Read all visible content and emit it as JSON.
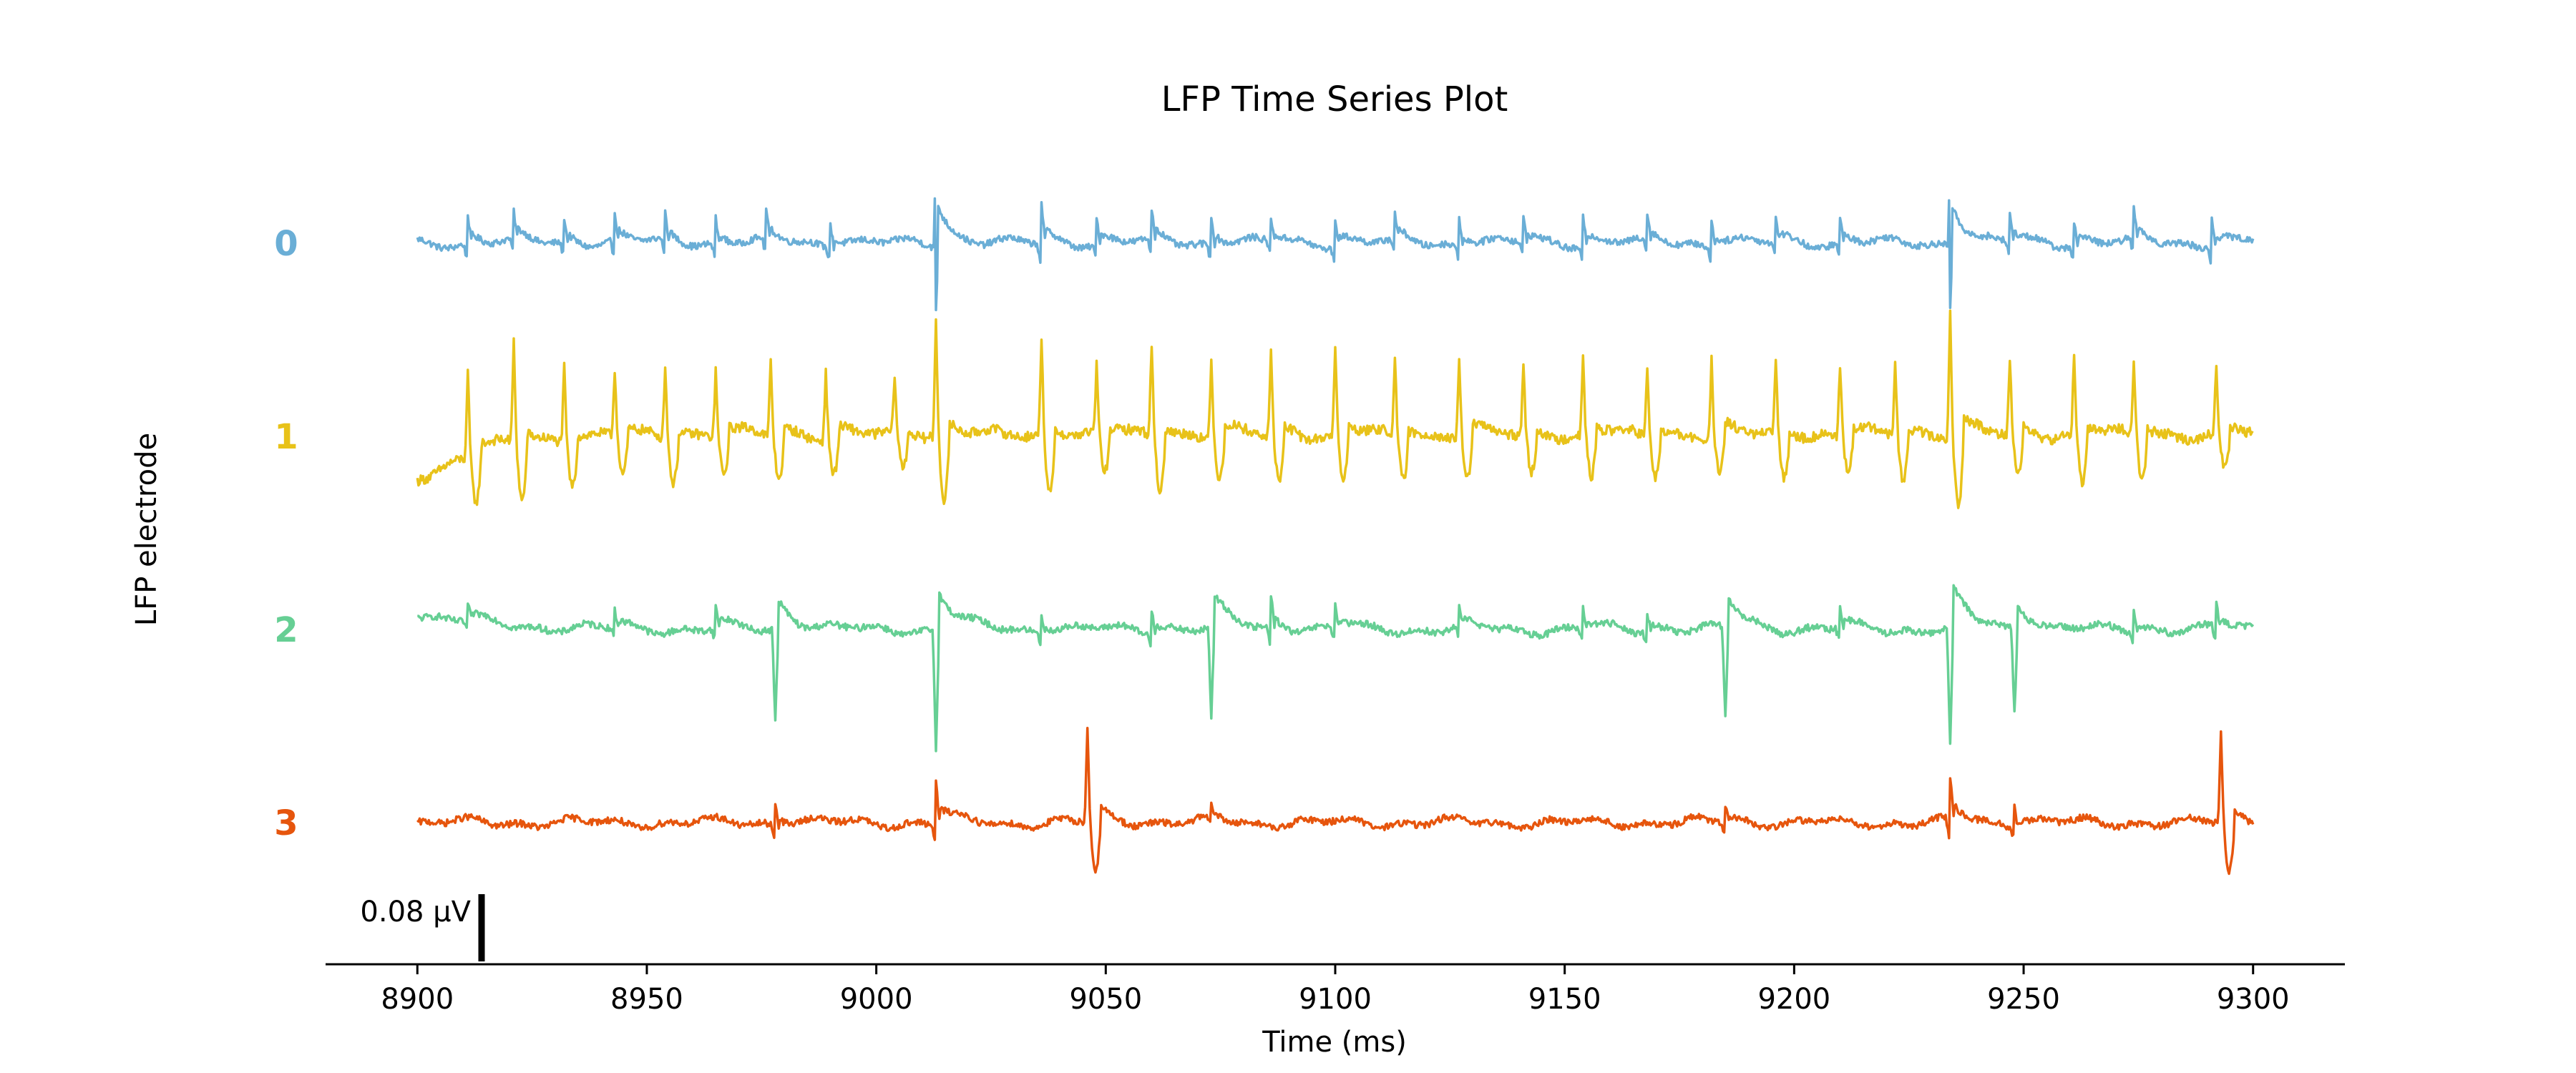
{
  "chart_data": {
    "type": "line",
    "title": "LFP Time Series Plot",
    "xlabel": "Time (ms)",
    "ylabel": "LFP electrode",
    "xlim": [
      8880,
      9320
    ],
    "xticks": [
      "8900",
      "8950",
      "9000",
      "9050",
      "9100",
      "9150",
      "9200",
      "9250",
      "9300"
    ],
    "scale_bar_label": "0.08 μV",
    "scale_bar_value": 0.08,
    "grid": false,
    "series": [
      {
        "name": "0",
        "color": "#6aaed6",
        "baseline": 0,
        "noise": 0.004,
        "start_level": 0.0,
        "events": [
          {
            "t": 8911,
            "amp": 0.035,
            "kind": "bi"
          },
          {
            "t": 8921,
            "amp": 0.03,
            "kind": "bi"
          },
          {
            "t": 8932,
            "amp": 0.03,
            "kind": "bi"
          },
          {
            "t": 8943,
            "amp": 0.035,
            "kind": "bi"
          },
          {
            "t": 8954,
            "amp": 0.03,
            "kind": "bi"
          },
          {
            "t": 8965,
            "amp": 0.03,
            "kind": "bi"
          },
          {
            "t": 8976,
            "amp": 0.035,
            "kind": "bi"
          },
          {
            "t": 8990,
            "amp": 0.03,
            "kind": "bi"
          },
          {
            "t": 9013,
            "amp": 0.11,
            "kind": "big"
          },
          {
            "t": 9036,
            "amp": 0.045,
            "kind": "bi"
          },
          {
            "t": 9048,
            "amp": 0.03,
            "kind": "bi"
          },
          {
            "t": 9060,
            "amp": 0.035,
            "kind": "bi"
          },
          {
            "t": 9073,
            "amp": 0.035,
            "kind": "bi"
          },
          {
            "t": 9086,
            "amp": 0.03,
            "kind": "bi"
          },
          {
            "t": 9100,
            "amp": 0.035,
            "kind": "bi"
          },
          {
            "t": 9113,
            "amp": 0.03,
            "kind": "bi"
          },
          {
            "t": 9127,
            "amp": 0.035,
            "kind": "bi"
          },
          {
            "t": 9141,
            "amp": 0.03,
            "kind": "bi"
          },
          {
            "t": 9154,
            "amp": 0.035,
            "kind": "bi"
          },
          {
            "t": 9168,
            "amp": 0.03,
            "kind": "bi"
          },
          {
            "t": 9182,
            "amp": 0.035,
            "kind": "bi"
          },
          {
            "t": 9196,
            "amp": 0.03,
            "kind": "bi"
          },
          {
            "t": 9210,
            "amp": 0.03,
            "kind": "bi"
          },
          {
            "t": 9234,
            "amp": 0.11,
            "kind": "big"
          },
          {
            "t": 9247,
            "amp": 0.035,
            "kind": "bi"
          },
          {
            "t": 9261,
            "amp": 0.03,
            "kind": "bi"
          },
          {
            "t": 9274,
            "amp": 0.035,
            "kind": "bi"
          },
          {
            "t": 9291,
            "amp": 0.035,
            "kind": "bi"
          }
        ]
      },
      {
        "name": "1",
        "color": "#e8c219",
        "baseline": 1,
        "noise": 0.006,
        "start_level": -0.05,
        "events": [
          {
            "t": 8911,
            "amp": 0.1,
            "kind": "up"
          },
          {
            "t": 8921,
            "amp": 0.12,
            "kind": "up"
          },
          {
            "t": 8932,
            "amp": 0.09,
            "kind": "up"
          },
          {
            "t": 8943,
            "amp": 0.08,
            "kind": "up"
          },
          {
            "t": 8954,
            "amp": 0.09,
            "kind": "up"
          },
          {
            "t": 8965,
            "amp": 0.08,
            "kind": "up"
          },
          {
            "t": 8977,
            "amp": 0.09,
            "kind": "up"
          },
          {
            "t": 8989,
            "amp": 0.08,
            "kind": "up"
          },
          {
            "t": 9004,
            "amp": 0.07,
            "kind": "up"
          },
          {
            "t": 9013,
            "amp": 0.14,
            "kind": "up"
          },
          {
            "t": 9036,
            "amp": 0.12,
            "kind": "up"
          },
          {
            "t": 9048,
            "amp": 0.08,
            "kind": "up"
          },
          {
            "t": 9060,
            "amp": 0.11,
            "kind": "up"
          },
          {
            "t": 9073,
            "amp": 0.09,
            "kind": "up"
          },
          {
            "t": 9086,
            "amp": 0.1,
            "kind": "up"
          },
          {
            "t": 9100,
            "amp": 0.1,
            "kind": "up"
          },
          {
            "t": 9113,
            "amp": 0.09,
            "kind": "up"
          },
          {
            "t": 9127,
            "amp": 0.09,
            "kind": "up"
          },
          {
            "t": 9141,
            "amp": 0.08,
            "kind": "up"
          },
          {
            "t": 9154,
            "amp": 0.09,
            "kind": "up"
          },
          {
            "t": 9168,
            "amp": 0.08,
            "kind": "up"
          },
          {
            "t": 9182,
            "amp": 0.09,
            "kind": "up"
          },
          {
            "t": 9196,
            "amp": 0.09,
            "kind": "up"
          },
          {
            "t": 9210,
            "amp": 0.08,
            "kind": "up"
          },
          {
            "t": 9222,
            "amp": 0.09,
            "kind": "up"
          },
          {
            "t": 9234,
            "amp": 0.15,
            "kind": "up"
          },
          {
            "t": 9247,
            "amp": 0.09,
            "kind": "up"
          },
          {
            "t": 9261,
            "amp": 0.1,
            "kind": "up"
          },
          {
            "t": 9274,
            "amp": 0.09,
            "kind": "up"
          },
          {
            "t": 9292,
            "amp": 0.08,
            "kind": "up"
          }
        ]
      },
      {
        "name": "2",
        "color": "#66cf94",
        "baseline": 2,
        "noise": 0.004,
        "start_level": 0.02,
        "events": [
          {
            "t": 8911,
            "amp": 0.02,
            "kind": "bi"
          },
          {
            "t": 8943,
            "amp": 0.02,
            "kind": "bi"
          },
          {
            "t": 8965,
            "amp": 0.025,
            "kind": "bi"
          },
          {
            "t": 8978,
            "amp": 0.11,
            "kind": "down"
          },
          {
            "t": 9013,
            "amp": 0.14,
            "kind": "down"
          },
          {
            "t": 9036,
            "amp": 0.025,
            "kind": "bi"
          },
          {
            "t": 9060,
            "amp": 0.03,
            "kind": "bi"
          },
          {
            "t": 9073,
            "amp": 0.11,
            "kind": "down"
          },
          {
            "t": 9086,
            "amp": 0.04,
            "kind": "bi"
          },
          {
            "t": 9100,
            "amp": 0.03,
            "kind": "bi"
          },
          {
            "t": 9127,
            "amp": 0.025,
            "kind": "bi"
          },
          {
            "t": 9154,
            "amp": 0.025,
            "kind": "bi"
          },
          {
            "t": 9168,
            "amp": 0.025,
            "kind": "bi"
          },
          {
            "t": 9185,
            "amp": 0.11,
            "kind": "down"
          },
          {
            "t": 9210,
            "amp": 0.025,
            "kind": "bi"
          },
          {
            "t": 9234,
            "amp": 0.14,
            "kind": "down"
          },
          {
            "t": 9248,
            "amp": 0.1,
            "kind": "down"
          },
          {
            "t": 9274,
            "amp": 0.025,
            "kind": "bi"
          },
          {
            "t": 9292,
            "amp": 0.03,
            "kind": "bi"
          }
        ]
      },
      {
        "name": "3",
        "color": "#e6550d",
        "baseline": 3,
        "noise": 0.004,
        "start_level": 0.0,
        "events": [
          {
            "t": 8978,
            "amp": 0.025,
            "kind": "bi"
          },
          {
            "t": 9013,
            "amp": 0.05,
            "kind": "bi"
          },
          {
            "t": 9046,
            "amp": 0.11,
            "kind": "up"
          },
          {
            "t": 9073,
            "amp": 0.02,
            "kind": "bi"
          },
          {
            "t": 9185,
            "amp": 0.02,
            "kind": "bi"
          },
          {
            "t": 9234,
            "amp": 0.05,
            "kind": "bi"
          },
          {
            "t": 9248,
            "amp": 0.025,
            "kind": "bi"
          },
          {
            "t": 9293,
            "amp": 0.11,
            "kind": "up"
          }
        ]
      }
    ]
  }
}
